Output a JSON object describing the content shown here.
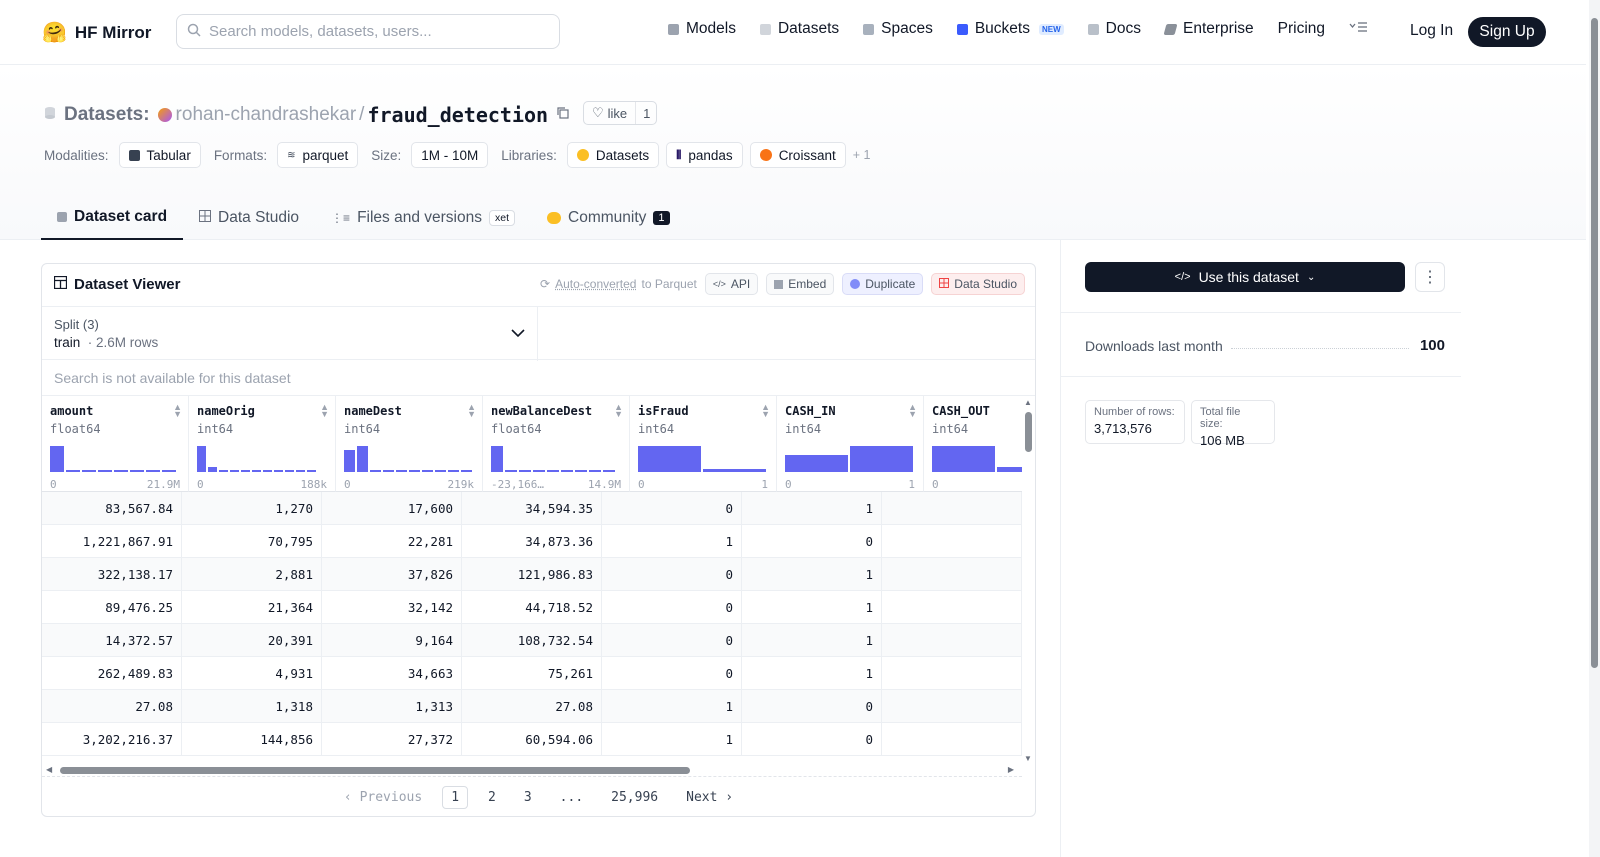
{
  "brand": "HF Mirror",
  "search": {
    "placeholder": "Search models, datasets, users..."
  },
  "nav": [
    {
      "label": "Models",
      "color": "#9ca3af"
    },
    {
      "label": "Datasets",
      "color": "#d1d5db"
    },
    {
      "label": "Spaces",
      "color": "#a8b1bd"
    },
    {
      "label": "Buckets",
      "color": "#3b5bfd",
      "badge": "NEW"
    },
    {
      "label": "Docs",
      "color": "#b9c0c9"
    },
    {
      "label": "Enterprise",
      "color": "#8a9099"
    },
    {
      "label": "Pricing"
    }
  ],
  "auth": {
    "login": "Log In",
    "signup": "Sign Up"
  },
  "crumb": {
    "kind": "Datasets:",
    "user": "rohan-chandrashekar",
    "sep": "/",
    "name": "fraud_detection"
  },
  "like": {
    "label": "like",
    "count": "1"
  },
  "tags": {
    "modalities_label": "Modalities:",
    "modality": "Tabular",
    "formats_label": "Formats:",
    "format": "parquet",
    "size_label": "Size:",
    "size": "1M - 10M",
    "libraries_label": "Libraries:",
    "libs": [
      "Datasets",
      "pandas",
      "Croissant"
    ],
    "more": "+ 1"
  },
  "tabs": [
    {
      "label": "Dataset card",
      "active": true
    },
    {
      "label": "Data Studio"
    },
    {
      "label": "Files and versions",
      "badge": "xet"
    },
    {
      "label": "Community",
      "count": "1"
    }
  ],
  "viewer": {
    "title": "Dataset Viewer",
    "converted_a": "Auto-converted",
    "converted_b": "to Parquet",
    "api": "API",
    "embed": "Embed",
    "duplicate": "Duplicate",
    "studio": "Data Studio",
    "split_label": "Split (3)",
    "split_value": "train",
    "split_rows": "2.6M rows",
    "nosearch": "Search is not available for this dataset",
    "columns": [
      {
        "name": "amount",
        "type": "float64",
        "min": "0",
        "max": "21.9M",
        "hist": [
          1,
          0,
          0,
          0,
          0,
          0,
          0,
          0
        ]
      },
      {
        "name": "nameOrig",
        "type": "int64",
        "min": "0",
        "max": "188k",
        "hist": [
          1,
          0.2,
          0,
          0,
          0,
          0,
          0,
          0,
          0,
          0,
          0
        ]
      },
      {
        "name": "nameDest",
        "type": "int64",
        "min": "0",
        "max": "219k",
        "hist": [
          0.85,
          1,
          0,
          0,
          0,
          0,
          0,
          0,
          0,
          0
        ]
      },
      {
        "name": "newBalanceDest",
        "type": "float64",
        "min": "-23,166…",
        "max": "14.9M",
        "hist": [
          1,
          0,
          0,
          0,
          0,
          0,
          0,
          0,
          0
        ]
      },
      {
        "name": "isFraud",
        "type": "int64",
        "min": "0",
        "max": "1",
        "hist": [
          1,
          0.1
        ]
      },
      {
        "name": "CASH_IN",
        "type": "int64",
        "min": "0",
        "max": "1",
        "hist": [
          0.65,
          1
        ]
      },
      {
        "name": "CASH_OUT",
        "type": "int64",
        "min": "0",
        "max": "",
        "hist": [
          1,
          0.2
        ]
      }
    ],
    "rows": [
      [
        "83,567.84",
        "1,270",
        "17,600",
        "34,594.35",
        "0",
        "1",
        ""
      ],
      [
        "1,221,867.91",
        "70,795",
        "22,281",
        "34,873.36",
        "1",
        "0",
        ""
      ],
      [
        "322,138.17",
        "2,881",
        "37,826",
        "121,986.83",
        "0",
        "1",
        ""
      ],
      [
        "89,476.25",
        "21,364",
        "32,142",
        "44,718.52",
        "0",
        "1",
        ""
      ],
      [
        "14,372.57",
        "20,391",
        "9,164",
        "108,732.54",
        "0",
        "1",
        ""
      ],
      [
        "262,489.83",
        "4,931",
        "34,663",
        "75,261",
        "0",
        "1",
        ""
      ],
      [
        "27.08",
        "1,318",
        "1,313",
        "27.08",
        "1",
        "0",
        ""
      ],
      [
        "3,202,216.37",
        "144,856",
        "27,372",
        "60,594.06",
        "1",
        "0",
        ""
      ]
    ],
    "pager": {
      "prev": "Previous",
      "pages": [
        "1",
        "2",
        "3",
        "...",
        "25,996"
      ],
      "next": "Next"
    }
  },
  "side": {
    "use": "Use this dataset",
    "downloads_label": "Downloads last month",
    "downloads": "100",
    "rows_label": "Number of rows:",
    "rows": "3,713,576",
    "size_label": "Total file size:",
    "size": "106 MB"
  },
  "colors": {
    "accent": "#6366f1",
    "dark": "#111827"
  }
}
